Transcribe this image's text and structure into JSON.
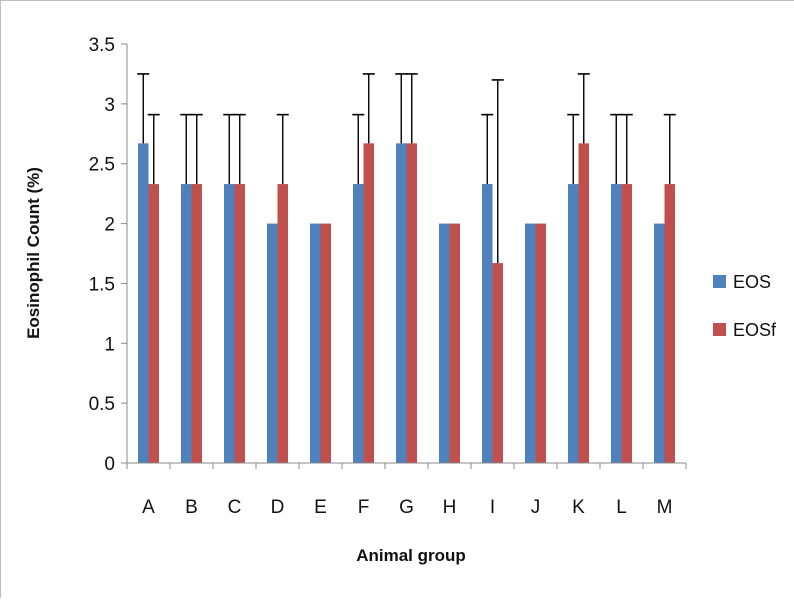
{
  "chart_data": {
    "type": "bar",
    "title": "",
    "xlabel": "Animal group",
    "ylabel": "Eosinophil Count  (%)",
    "ylim": [
      0,
      3.5
    ],
    "yticks": [
      "0",
      "0.5",
      "1",
      "1.5",
      "2",
      "2.5",
      "3",
      "3.5"
    ],
    "grid": false,
    "legend": "right",
    "categories": [
      "A",
      "B",
      "C",
      "D",
      "E",
      "F",
      "G",
      "H",
      "I",
      "J",
      "K",
      "L",
      "M"
    ],
    "series": [
      {
        "name": "EOS",
        "color": "#4f81bd",
        "values": [
          2.67,
          2.33,
          2.33,
          2.0,
          2.0,
          2.33,
          2.67,
          2.0,
          2.33,
          2.0,
          2.33,
          2.33,
          2.0
        ],
        "errors": [
          0.58,
          0.58,
          0.58,
          0.0,
          0.0,
          0.58,
          0.58,
          0.0,
          0.58,
          0.0,
          0.58,
          0.58,
          0.0
        ]
      },
      {
        "name": "EOSf",
        "color": "#c0504d",
        "values": [
          2.33,
          2.33,
          2.33,
          2.33,
          2.0,
          2.67,
          2.67,
          2.0,
          1.67,
          2.0,
          2.67,
          2.33,
          2.33
        ],
        "errors": [
          0.58,
          0.58,
          0.58,
          0.58,
          0.0,
          0.58,
          0.58,
          0.0,
          1.53,
          0.0,
          0.58,
          0.58,
          0.58
        ]
      }
    ]
  }
}
